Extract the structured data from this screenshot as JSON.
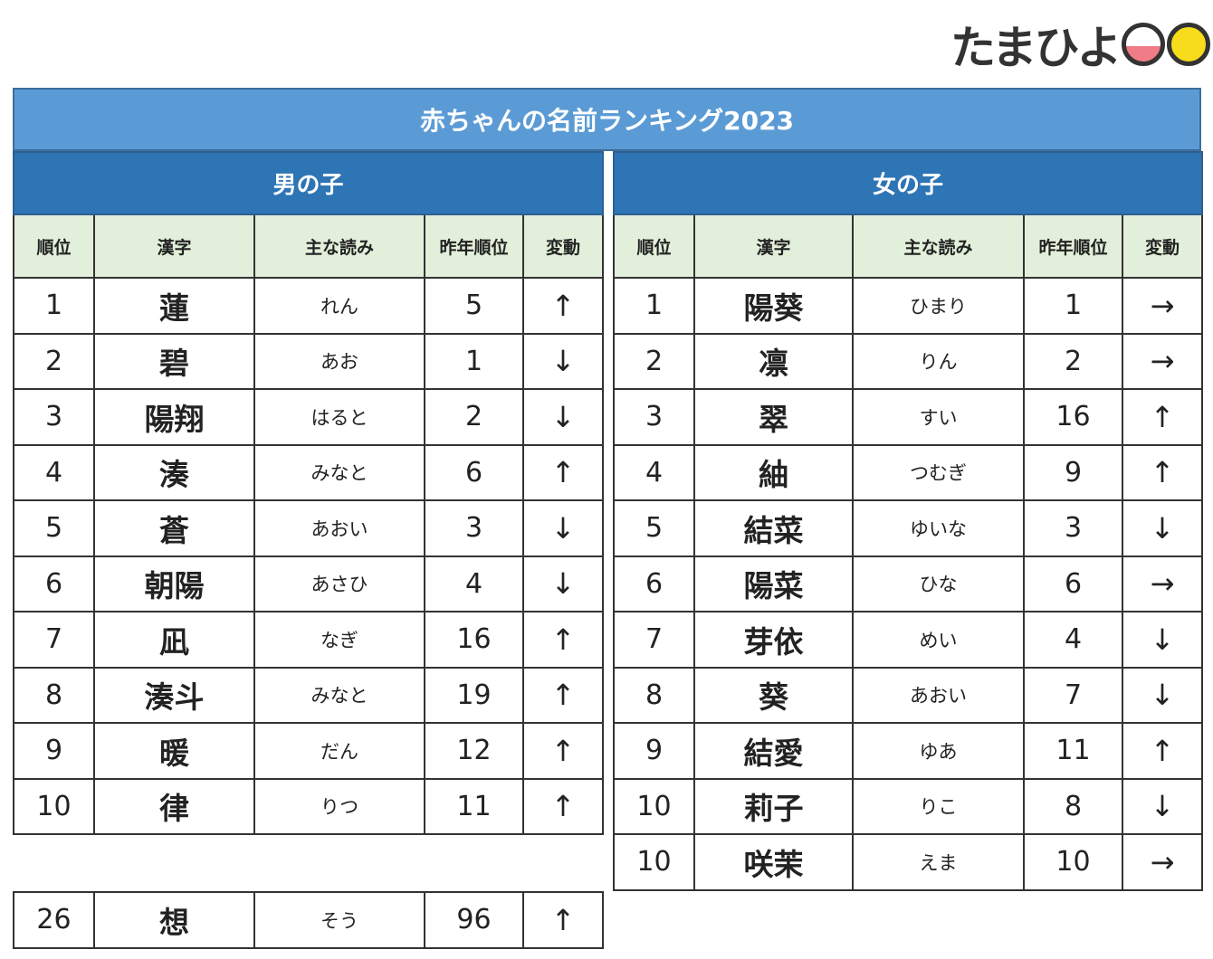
{
  "logo": {
    "text": "たまひよ"
  },
  "title": "赤ちゃんの名前ランキング2023",
  "columns": [
    "順位",
    "漢字",
    "主な読み",
    "昨年順位",
    "変動"
  ],
  "boys": {
    "heading": "男の子",
    "rows": [
      [
        "1",
        "蓮",
        "れん",
        "5",
        "↑"
      ],
      [
        "2",
        "碧",
        "あお",
        "1",
        "↓"
      ],
      [
        "3",
        "陽翔",
        "はると",
        "2",
        "↓"
      ],
      [
        "4",
        "湊",
        "みなと",
        "6",
        "↑"
      ],
      [
        "5",
        "蒼",
        "あおい",
        "3",
        "↓"
      ],
      [
        "6",
        "朝陽",
        "あさひ",
        "4",
        "↓"
      ],
      [
        "7",
        "凪",
        "なぎ",
        "16",
        "↑"
      ],
      [
        "8",
        "湊斗",
        "みなと",
        "19",
        "↑"
      ],
      [
        "9",
        "暖",
        "だん",
        "12",
        "↑"
      ],
      [
        "10",
        "律",
        "りつ",
        "11",
        "↑"
      ]
    ],
    "extra": [
      "26",
      "想",
      "そう",
      "96",
      "↑"
    ]
  },
  "girls": {
    "heading": "女の子",
    "rows": [
      [
        "1",
        "陽葵",
        "ひまり",
        "1",
        "→"
      ],
      [
        "2",
        "凛",
        "りん",
        "2",
        "→"
      ],
      [
        "3",
        "翠",
        "すい",
        "16",
        "↑"
      ],
      [
        "4",
        "紬",
        "つむぎ",
        "9",
        "↑"
      ],
      [
        "5",
        "結菜",
        "ゆいな",
        "3",
        "↓"
      ],
      [
        "6",
        "陽菜",
        "ひな",
        "6",
        "→"
      ],
      [
        "7",
        "芽依",
        "めい",
        "4",
        "↓"
      ],
      [
        "8",
        "葵",
        "あおい",
        "7",
        "↓"
      ],
      [
        "9",
        "結愛",
        "ゆあ",
        "11",
        "↑"
      ],
      [
        "10",
        "莉子",
        "りこ",
        "8",
        "↓"
      ],
      [
        "10",
        "咲茉",
        "えま",
        "10",
        "→"
      ]
    ]
  },
  "colors": {
    "title_bg": "#5b9bd5",
    "section_bg": "#2e75b6",
    "column_bg": "#e2efda"
  }
}
